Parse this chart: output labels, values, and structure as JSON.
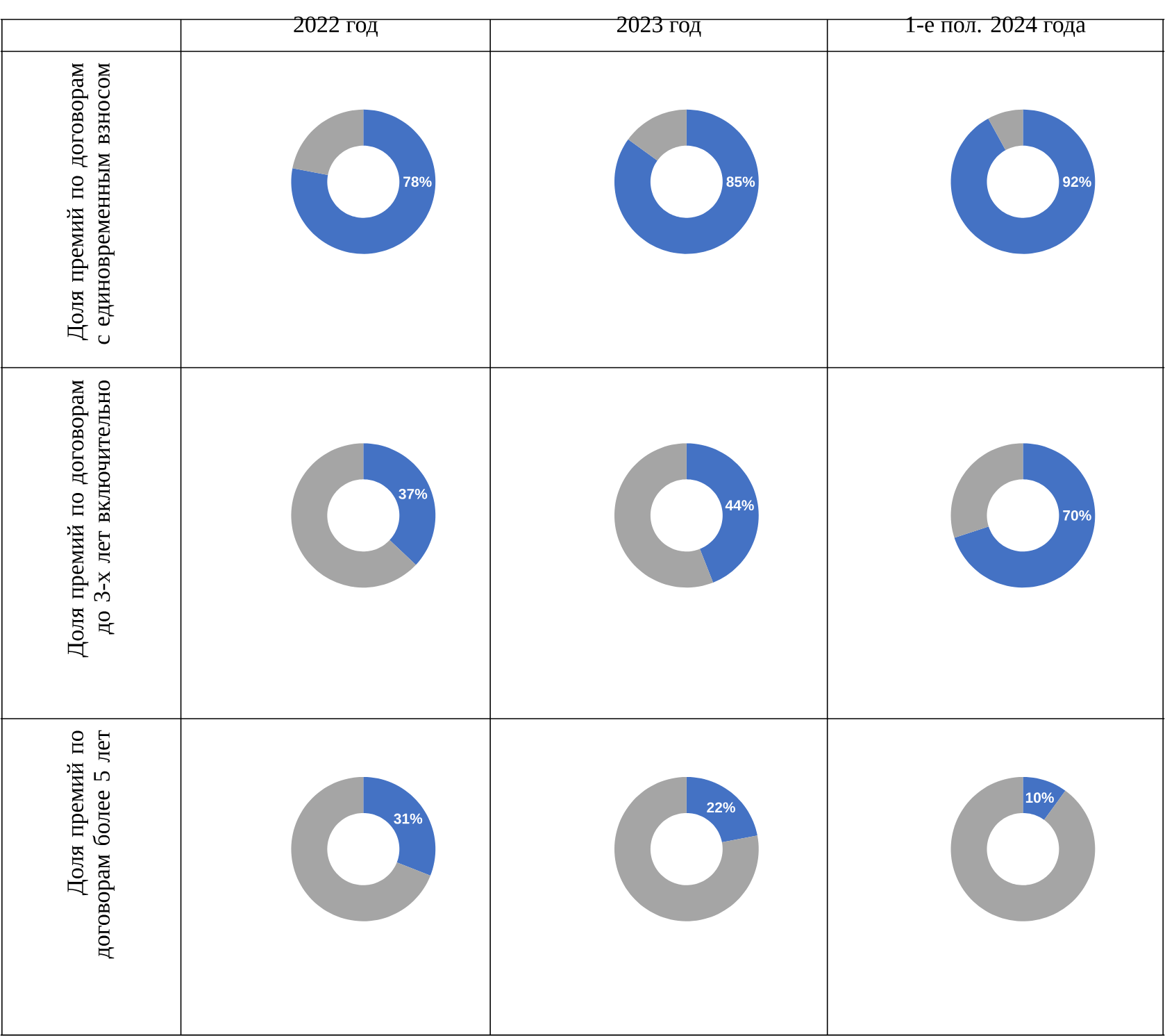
{
  "chart_data": [
    {
      "type": "donut",
      "title": "2022 год",
      "ylabel": "Доля премий по договорам с единовременным взносом",
      "categories": [
        null,
        null
      ],
      "values": [
        78,
        22
      ],
      "colors": [
        "#4472c4",
        "#a5a5a5"
      ],
      "value_labels": [
        "78%",
        null
      ]
    },
    {
      "type": "donut",
      "title": "2023 год",
      "categories": [
        null,
        null
      ],
      "values": [
        85,
        15
      ],
      "colors": [
        "#4472c4",
        "#a5a5a5"
      ],
      "value_labels": [
        "85%",
        null
      ]
    },
    {
      "type": "donut",
      "title": "1-е пол. 2024 года",
      "categories": [
        null,
        null
      ],
      "values": [
        92,
        8
      ],
      "colors": [
        "#4472c4",
        "#a5a5a5"
      ],
      "value_labels": [
        "92%",
        null
      ]
    },
    {
      "type": "donut",
      "ylabel": "Доля премий по договорам до 3-х лет включительно",
      "categories": [
        null,
        null
      ],
      "values": [
        37,
        63
      ],
      "colors": [
        "#4472c4",
        "#a5a5a5"
      ],
      "value_labels": [
        "37%",
        null
      ]
    },
    {
      "type": "donut",
      "categories": [
        null,
        null
      ],
      "values": [
        44,
        56
      ],
      "colors": [
        "#4472c4",
        "#a5a5a5"
      ],
      "value_labels": [
        "44%",
        null
      ]
    },
    {
      "type": "donut",
      "categories": [
        null,
        null
      ],
      "values": [
        70,
        30
      ],
      "colors": [
        "#4472c4",
        "#a5a5a5"
      ],
      "value_labels": [
        "70%",
        null
      ]
    },
    {
      "type": "donut",
      "ylabel": "Доля премий по договорам более 5 лет",
      "categories": [
        null,
        null
      ],
      "values": [
        31,
        69
      ],
      "colors": [
        "#4472c4",
        "#a5a5a5"
      ],
      "value_labels": [
        "31%",
        null
      ]
    },
    {
      "type": "donut",
      "categories": [
        null,
        null
      ],
      "values": [
        22,
        78
      ],
      "colors": [
        "#4472c4",
        "#a5a5a5"
      ],
      "value_labels": [
        "22%",
        null
      ]
    },
    {
      "type": "donut",
      "categories": [
        null,
        null
      ],
      "values": [
        10,
        90
      ],
      "colors": [
        "#4472c4",
        "#a5a5a5"
      ],
      "value_labels": [
        "10%",
        null
      ]
    }
  ]
}
